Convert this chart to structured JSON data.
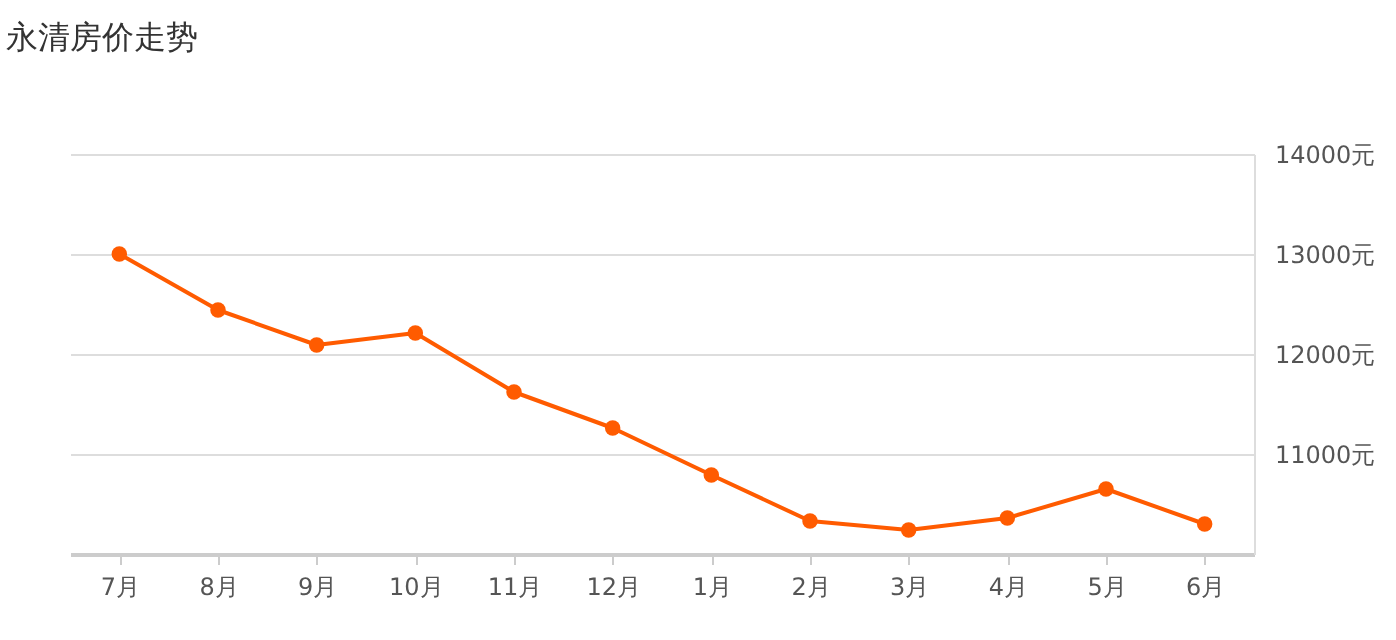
{
  "chart_data": {
    "type": "line",
    "title": "永清房价走势",
    "categories": [
      "7月",
      "8月",
      "9月",
      "10月",
      "11月",
      "12月",
      "1月",
      "2月",
      "3月",
      "4月",
      "5月",
      "6月"
    ],
    "series": [
      {
        "color": "#ff5b00",
        "values": [
          13000,
          12440,
          12090,
          12210,
          11620,
          11260,
          10790,
          10330,
          10240,
          10360,
          10650,
          10300
        ]
      }
    ],
    "ylim": [
      10000,
      14000
    ],
    "yticks": [
      {
        "value": 11000,
        "label": "11000元"
      },
      {
        "value": 12000,
        "label": "12000元"
      },
      {
        "value": 13000,
        "label": "13000元"
      },
      {
        "value": 14000,
        "label": "14000元"
      }
    ],
    "grid": "y",
    "marker": "circle",
    "line_style": "solid"
  }
}
